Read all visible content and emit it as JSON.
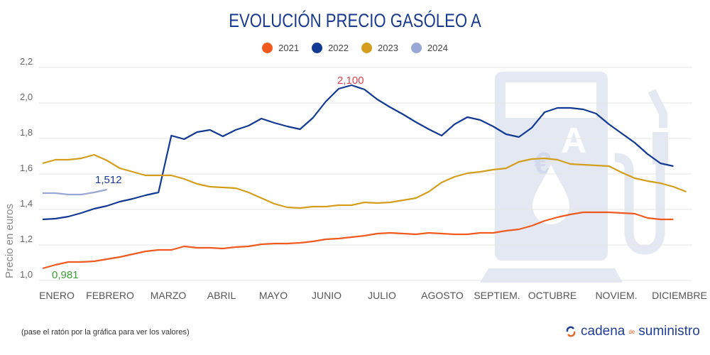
{
  "title": "EVOLUCIÓN PRECIO GASÓLEO A",
  "footnote": "(pase el ratón por la gráfica para ver los valores)",
  "brand": {
    "part1": "cadena",
    "part2": "de",
    "part3": "suministro",
    "icon": "refresh-arrows-logo"
  },
  "watermark_icon": "fuel-pump-icon",
  "chart_data": {
    "type": "line",
    "title": "EVOLUCIÓN PRECIO GASÓLEO A",
    "xlabel": "",
    "ylabel": "Precio en euros",
    "ylim": [
      1.0,
      2.2
    ],
    "yticks": [
      "1,0",
      "1,2",
      "1,4",
      "1,6",
      "1,8",
      "2,0",
      "2,2"
    ],
    "ytick_values": [
      1.0,
      1.2,
      1.4,
      1.6,
      1.8,
      2.0,
      2.2
    ],
    "grid": true,
    "legend_placement": "top-center",
    "x_unit": "weekly samples",
    "month_labels": [
      "ENERO",
      "FEBRERO",
      "MARZO",
      "ABRIL",
      "MAYO",
      "JUNIO",
      "JULIO",
      "AGOSTO",
      "SEPTIEM.",
      "OCTUBRE",
      "NOVIEM.",
      "DICIEMBRE"
    ],
    "series": [
      {
        "name": "2021",
        "color": "#f05a1e",
        "values": [
          1.068,
          1.088,
          1.104,
          1.104,
          1.108,
          1.12,
          1.132,
          1.148,
          1.164,
          1.172,
          1.172,
          1.192,
          1.184,
          1.184,
          1.18,
          1.188,
          1.192,
          1.204,
          1.208,
          1.208,
          1.212,
          1.22,
          1.232,
          1.236,
          1.244,
          1.252,
          1.264,
          1.268,
          1.264,
          1.26,
          1.268,
          1.264,
          1.26,
          1.26,
          1.268,
          1.268,
          1.28,
          1.288,
          1.308,
          1.336,
          1.356,
          1.372,
          1.384,
          1.384,
          1.384,
          1.38,
          1.376,
          1.352,
          1.344,
          1.344
        ]
      },
      {
        "name": "2022",
        "color": "#123a94",
        "values": [
          1.344,
          1.348,
          1.36,
          1.38,
          1.404,
          1.42,
          1.444,
          1.46,
          1.48,
          1.496,
          1.816,
          1.796,
          1.836,
          1.848,
          1.812,
          1.848,
          1.872,
          1.912,
          1.888,
          1.868,
          1.852,
          1.916,
          2.008,
          2.08,
          2.1,
          2.076,
          2.02,
          1.976,
          1.936,
          1.892,
          1.852,
          1.816,
          1.88,
          1.92,
          1.904,
          1.868,
          1.824,
          1.808,
          1.86,
          1.948,
          1.972,
          1.972,
          1.964,
          1.94,
          1.88,
          1.828,
          1.776,
          1.712,
          1.66,
          1.644
        ]
      },
      {
        "name": "2023",
        "color": "#d49e1c",
        "values": [
          1.66,
          1.68,
          1.68,
          1.688,
          1.708,
          1.676,
          1.632,
          1.612,
          1.592,
          1.592,
          1.592,
          1.572,
          1.544,
          1.528,
          1.524,
          1.52,
          1.496,
          1.464,
          1.432,
          1.412,
          1.408,
          1.416,
          1.416,
          1.424,
          1.424,
          1.44,
          1.436,
          1.44,
          1.452,
          1.464,
          1.5,
          1.552,
          1.584,
          1.604,
          1.612,
          1.624,
          1.632,
          1.668,
          1.684,
          1.688,
          1.68,
          1.656,
          1.652,
          1.648,
          1.644,
          1.608,
          1.576,
          1.56,
          1.548,
          1.528,
          1.5
        ]
      },
      {
        "name": "2024",
        "color": "#98a7d4",
        "values": [
          1.492,
          1.492,
          1.484,
          1.484,
          1.496,
          1.512
        ]
      }
    ],
    "annotations": [
      {
        "text": "2,100",
        "color": "#e0424f"
      },
      {
        "text": "1,512",
        "color": "#183a8e"
      },
      {
        "text": "0,981",
        "color": "#3aa132"
      }
    ]
  }
}
